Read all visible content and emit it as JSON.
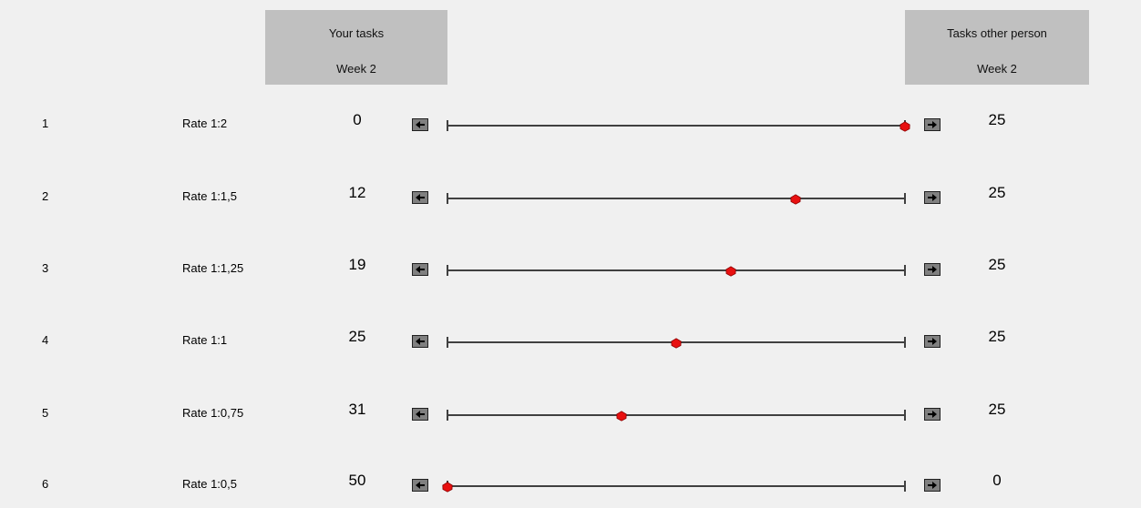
{
  "header_left": {
    "line1": "Your tasks",
    "line2": "Week 2"
  },
  "header_right": {
    "line1": "Tasks other person",
    "line2": "Week 2"
  },
  "slider_style": {
    "knob_color": "#e81010",
    "knob_border": "#8a0000",
    "track_color": "#404040",
    "button_color": "#808080"
  },
  "rows": [
    {
      "num": "1",
      "rate": "Rate 1:2",
      "left": "0",
      "right": "25",
      "position": 1.0
    },
    {
      "num": "2",
      "rate": "Rate 1:1,5",
      "left": "12",
      "right": "25",
      "position": 0.76
    },
    {
      "num": "3",
      "rate": "Rate 1:1,25",
      "left": "19",
      "right": "25",
      "position": 0.62
    },
    {
      "num": "4",
      "rate": "Rate 1:1",
      "left": "25",
      "right": "25",
      "position": 0.5
    },
    {
      "num": "5",
      "rate": "Rate 1:0,75",
      "left": "31",
      "right": "25",
      "position": 0.38
    },
    {
      "num": "6",
      "rate": "Rate 1:0,5",
      "left": "50",
      "right": "0",
      "position": 0.0
    }
  ]
}
